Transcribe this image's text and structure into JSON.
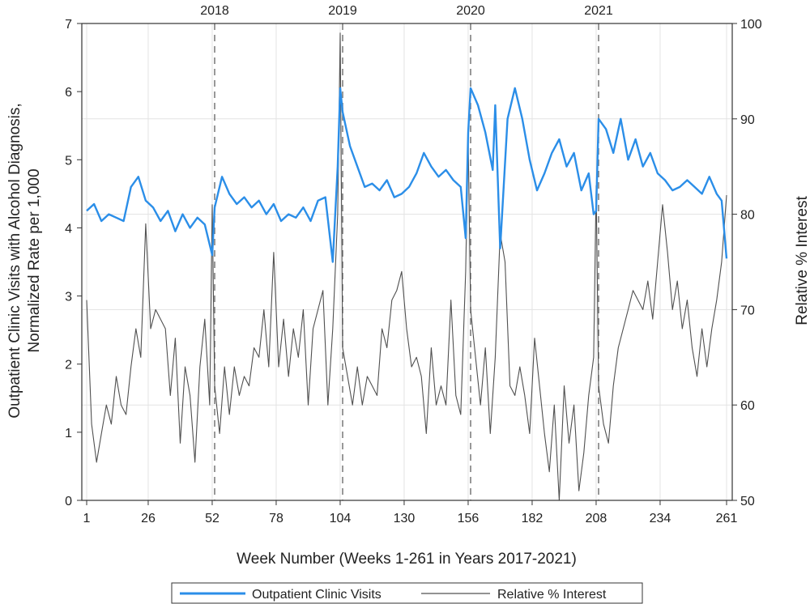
{
  "chart_data": {
    "type": "line",
    "title": "",
    "xlabel": "Week Number (Weeks 1-261 in Years 2017-2021)",
    "ylabel_left": "Outpatient Clinic Visits with Alcohol Diagnosis, Normalized Rate per 1,000",
    "ylabel_left_lines": [
      "Outpatient Clinic Visits with Alcohol Diagnosis,",
      "Normalized Rate per 1,000"
    ],
    "ylabel_right": "Relative % Interest",
    "xlim": [
      1,
      261
    ],
    "ylim_left": [
      0,
      7
    ],
    "ylim_right": [
      50,
      100
    ],
    "x_ticks": [
      "1",
      "26",
      "52",
      "78",
      "104",
      "130",
      "156",
      "182",
      "208",
      "234",
      "261"
    ],
    "y_left_ticks": [
      "0",
      "1",
      "2",
      "3",
      "4",
      "5",
      "6",
      "7"
    ],
    "y_right_ticks": [
      "50",
      "60",
      "70",
      "80",
      "90",
      "100"
    ],
    "grid": true,
    "year_markers": [
      {
        "week": 53,
        "label": "2018"
      },
      {
        "week": 105,
        "label": "2019"
      },
      {
        "week": 157,
        "label": "2020"
      },
      {
        "week": 209,
        "label": "2021"
      }
    ],
    "legend_position": "bottom",
    "series": [
      {
        "name": "Outpatient Clinic Visits",
        "axis": "left",
        "color": "#2b8ee8",
        "x": [
          1,
          4,
          7,
          10,
          13,
          16,
          19,
          22,
          25,
          28,
          31,
          34,
          37,
          40,
          43,
          46,
          49,
          52,
          53,
          56,
          59,
          62,
          65,
          68,
          71,
          74,
          77,
          80,
          83,
          86,
          89,
          92,
          95,
          98,
          101,
          103,
          104,
          105,
          108,
          111,
          114,
          117,
          120,
          123,
          126,
          129,
          132,
          135,
          138,
          141,
          144,
          147,
          150,
          153,
          155,
          156,
          157,
          160,
          163,
          166,
          167,
          169,
          172,
          175,
          178,
          181,
          184,
          187,
          190,
          193,
          196,
          199,
          202,
          205,
          207,
          208,
          209,
          212,
          215,
          218,
          221,
          224,
          227,
          230,
          233,
          236,
          239,
          242,
          245,
          248,
          251,
          254,
          257,
          259,
          261
        ],
        "y": [
          4.25,
          4.35,
          4.1,
          4.2,
          4.15,
          4.1,
          4.6,
          4.75,
          4.4,
          4.3,
          4.1,
          4.25,
          3.95,
          4.2,
          4.0,
          4.15,
          4.05,
          3.6,
          4.3,
          4.75,
          4.5,
          4.35,
          4.45,
          4.3,
          4.4,
          4.2,
          4.35,
          4.1,
          4.2,
          4.15,
          4.3,
          4.1,
          4.4,
          4.45,
          3.5,
          4.9,
          6.05,
          5.7,
          5.2,
          4.9,
          4.6,
          4.65,
          4.55,
          4.7,
          4.45,
          4.5,
          4.6,
          4.8,
          5.1,
          4.9,
          4.75,
          4.85,
          4.7,
          4.6,
          3.85,
          5.4,
          6.05,
          5.8,
          5.4,
          4.85,
          5.8,
          3.7,
          5.6,
          6.05,
          5.6,
          5.0,
          4.55,
          4.8,
          5.1,
          5.3,
          4.9,
          5.1,
          4.55,
          4.8,
          4.2,
          4.25,
          5.6,
          5.45,
          5.1,
          5.6,
          5.0,
          5.3,
          4.9,
          5.1,
          4.8,
          4.7,
          4.55,
          4.6,
          4.7,
          4.6,
          4.5,
          4.75,
          4.5,
          4.4,
          3.55
        ]
      },
      {
        "name": "Relative % Interest",
        "axis": "right",
        "color": "#505050",
        "x": [
          1,
          3,
          5,
          7,
          9,
          11,
          13,
          15,
          17,
          19,
          21,
          23,
          25,
          27,
          29,
          31,
          33,
          35,
          37,
          39,
          41,
          43,
          45,
          47,
          49,
          51,
          52,
          53,
          55,
          57,
          59,
          61,
          63,
          65,
          67,
          69,
          71,
          73,
          75,
          77,
          79,
          81,
          83,
          85,
          87,
          89,
          91,
          93,
          95,
          97,
          99,
          101,
          103,
          104,
          105,
          107,
          109,
          111,
          113,
          115,
          117,
          119,
          121,
          123,
          125,
          127,
          129,
          131,
          133,
          135,
          137,
          139,
          141,
          143,
          145,
          147,
          149,
          151,
          153,
          155,
          156,
          157,
          159,
          161,
          163,
          165,
          167,
          169,
          171,
          173,
          175,
          177,
          179,
          181,
          183,
          185,
          187,
          189,
          191,
          193,
          195,
          197,
          199,
          201,
          203,
          205,
          207,
          208,
          209,
          211,
          213,
          215,
          217,
          219,
          221,
          223,
          225,
          227,
          229,
          231,
          233,
          235,
          237,
          239,
          241,
          243,
          245,
          247,
          249,
          251,
          253,
          255,
          257,
          259,
          261
        ],
        "y": [
          71,
          58,
          54,
          57,
          60,
          58,
          63,
          60,
          59,
          64,
          68,
          65,
          79,
          68,
          70,
          69,
          68,
          61,
          67,
          56,
          64,
          61,
          54,
          64,
          69,
          60,
          81,
          62,
          57,
          64,
          59,
          64,
          61,
          63,
          62,
          66,
          65,
          70,
          64,
          76,
          64,
          69,
          63,
          68,
          65,
          70,
          60,
          68,
          70,
          72,
          60,
          68,
          80,
          99,
          66,
          63,
          60,
          64,
          60,
          63,
          62,
          61,
          68,
          66,
          71,
          72,
          74,
          68,
          64,
          65,
          63,
          57,
          66,
          60,
          62,
          60,
          71,
          61,
          59,
          74,
          88,
          70,
          65,
          60,
          66,
          57,
          65,
          78,
          75,
          62,
          61,
          64,
          61,
          57,
          67,
          62,
          57,
          53,
          60,
          50,
          62,
          56,
          60,
          51,
          55,
          61,
          65,
          83,
          62,
          58,
          56,
          62,
          66,
          68,
          70,
          72,
          71,
          70,
          73,
          69,
          75,
          81,
          76,
          70,
          73,
          68,
          71,
          66,
          63,
          68,
          64,
          68,
          71,
          75,
          82
        ]
      }
    ]
  }
}
